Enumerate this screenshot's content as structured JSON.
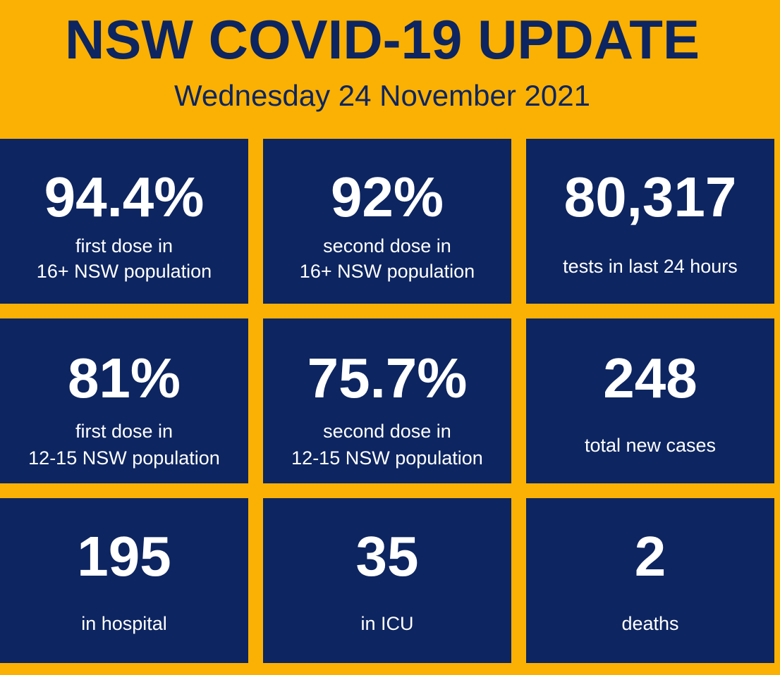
{
  "header": {
    "title": "NSW COVID-19 UPDATE",
    "date": "Wednesday 24 November 2021"
  },
  "tiles": [
    {
      "value": "94.4%",
      "line1": "first dose in",
      "line2": "16+ NSW population"
    },
    {
      "value": "92%",
      "line1": "second dose in",
      "line2": "16+ NSW population"
    },
    {
      "value": "80,317",
      "line1": "tests in last 24 hours"
    },
    {
      "value": "81%",
      "line1": "first dose in",
      "line2": "12-15 NSW population"
    },
    {
      "value": "75.7%",
      "line1": "second dose in",
      "line2": "12-15 NSW population"
    },
    {
      "value": "248",
      "line1": "total new cases"
    },
    {
      "value": "195",
      "line1": "in hospital"
    },
    {
      "value": "35",
      "line1": "in ICU"
    },
    {
      "value": "2",
      "line1": "deaths"
    }
  ],
  "colors": {
    "background": "#FBB104",
    "tile": "#0D2560",
    "title_text": "#0D2560",
    "tile_text": "#FFFFFF"
  }
}
